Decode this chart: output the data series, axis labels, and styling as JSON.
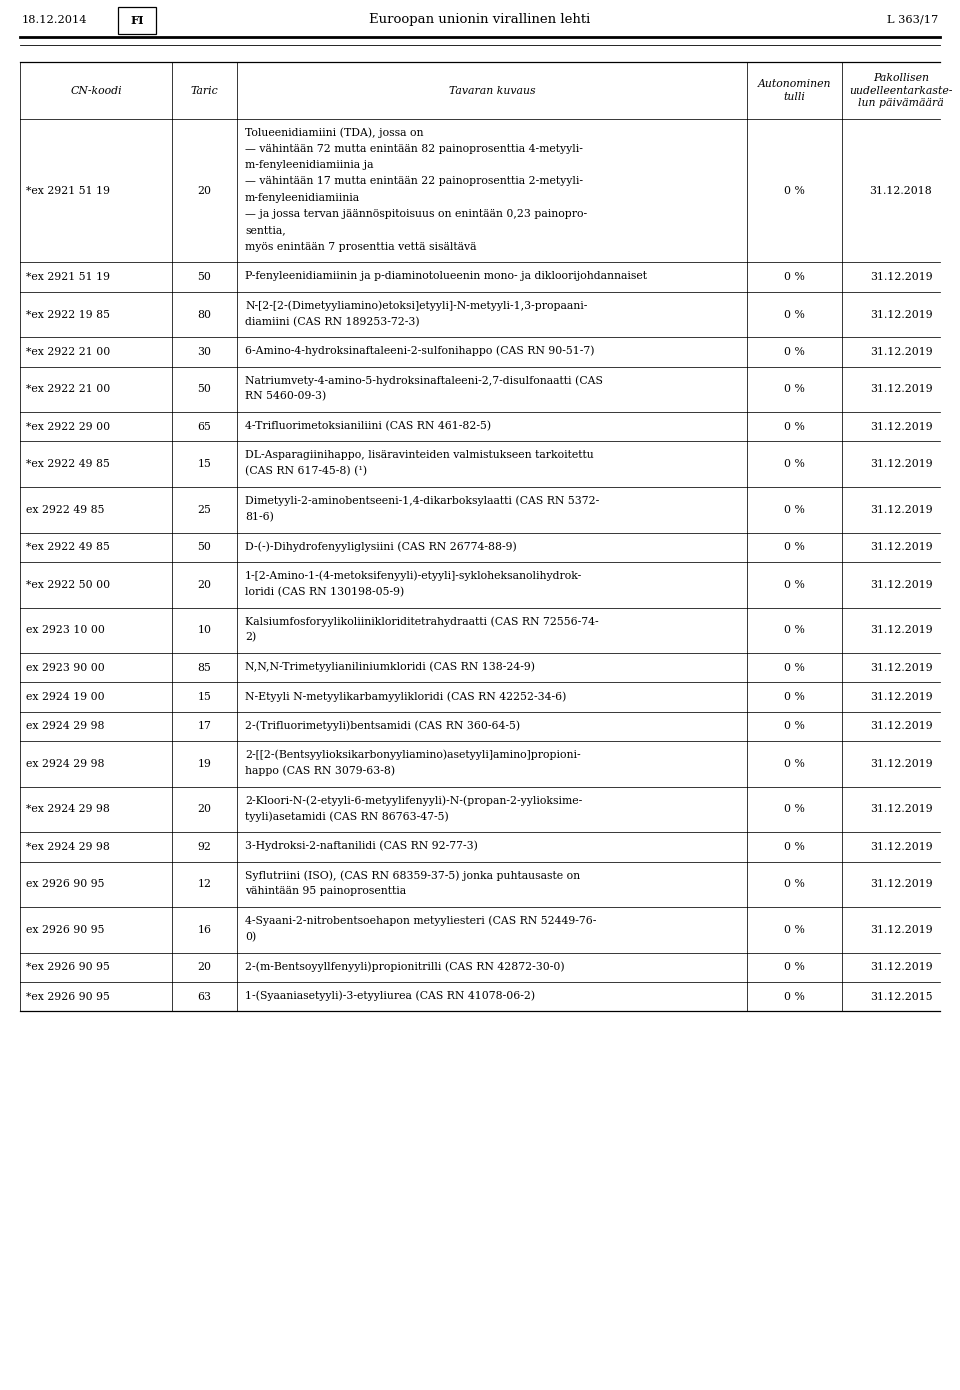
{
  "header_date": "18.12.2014",
  "header_lang": "FI",
  "header_title": "Euroopan unionin virallinen lehti",
  "header_page": "L 363/17",
  "col_headers": [
    "CN-koodi",
    "Taric",
    "Tavaran kuvaus",
    "Autonominen\ntulli",
    "Pakollisen\nuudelleentarkaste-\nlun päivämäärä"
  ],
  "rows": [
    {
      "cn": "*ex 2921 51 19",
      "taric": "20",
      "desc": "Tolueenidiamiini (TDA), jossa on\n— vähintään 72 mutta enintään 82 painoprosenttia 4-metyyli-\nm-fenyleenidiamiinia ja\n— vähintään 17 mutta enintään 22 painoprosenttia 2-metyyli-\nm-fenyleenidiamiinia\n— ja jossa tervan jäännöspitoisuus on enintään 0,23 painopro-\nsenttia,\nmyös enintään 7 prosenttia vettä sisältävä",
      "tulli": "0 %",
      "date": "31.12.2018"
    },
    {
      "cn": "*ex 2921 51 19",
      "taric": "50",
      "desc": "P-fenyleenidiamiinin ja p-diaminotolueenin mono- ja dikloorijohdannaiset",
      "tulli": "0 %",
      "date": "31.12.2019"
    },
    {
      "cn": "*ex 2922 19 85",
      "taric": "80",
      "desc": "N-[2-[2-(Dimetyyliamino)etoksi]etyyli]-N-metyyli-1,3-propaani-\ndiamiini (CAS RN 189253-72-3)",
      "tulli": "0 %",
      "date": "31.12.2019"
    },
    {
      "cn": "*ex 2922 21 00",
      "taric": "30",
      "desc": "6-Amino-4-hydroksinaftaleeni-2-sulfonihappo (CAS RN 90-51-7)",
      "tulli": "0 %",
      "date": "31.12.2019"
    },
    {
      "cn": "*ex 2922 21 00",
      "taric": "50",
      "desc": "Natriumvety-4-amino-5-hydroksinaftaleeni-2,7-disulfonaatti (CAS\nRN 5460-09-3)",
      "tulli": "0 %",
      "date": "31.12.2019"
    },
    {
      "cn": "*ex 2922 29 00",
      "taric": "65",
      "desc": "4-Trifluorimetoksianiliini (CAS RN 461-82-5)",
      "tulli": "0 %",
      "date": "31.12.2019"
    },
    {
      "cn": "*ex 2922 49 85",
      "taric": "15",
      "desc": "DL-Asparagiinihappo, lisäravinteiden valmistukseen tarkoitettu\n(CAS RN 617-45-8) (¹)",
      "tulli": "0 %",
      "date": "31.12.2019"
    },
    {
      "cn": "ex 2922 49 85",
      "taric": "25",
      "desc": "Dimetyyli-2-aminobentseeni-1,4-dikarboksylaatti (CAS RN 5372-\n81-6)",
      "tulli": "0 %",
      "date": "31.12.2019"
    },
    {
      "cn": "*ex 2922 49 85",
      "taric": "50",
      "desc": "D-(-)-Dihydrofenyyliglysiini (CAS RN 26774-88-9)",
      "tulli": "0 %",
      "date": "31.12.2019"
    },
    {
      "cn": "*ex 2922 50 00",
      "taric": "20",
      "desc": "1-[2-Amino-1-(4-metoksifenyyli)-etyyli]-sykloheksanolihydrok-\nloridi (CAS RN 130198-05-9)",
      "tulli": "0 %",
      "date": "31.12.2019"
    },
    {
      "cn": "ex 2923 10 00",
      "taric": "10",
      "desc": "Kalsiumfosforyylikoliinikloriditetrahydraatti (CAS RN 72556-74-\n2)",
      "tulli": "0 %",
      "date": "31.12.2019"
    },
    {
      "cn": "ex 2923 90 00",
      "taric": "85",
      "desc": "N,N,N-Trimetyylianiliniumkloridi (CAS RN 138-24-9)",
      "tulli": "0 %",
      "date": "31.12.2019"
    },
    {
      "cn": "ex 2924 19 00",
      "taric": "15",
      "desc": "N-Etyyli N-metyylikarbamyylikloridi (CAS RN 42252-34-6)",
      "tulli": "0 %",
      "date": "31.12.2019"
    },
    {
      "cn": "ex 2924 29 98",
      "taric": "17",
      "desc": "2-(Trifluorimetyyli)bentsamidi (CAS RN 360-64-5)",
      "tulli": "0 %",
      "date": "31.12.2019"
    },
    {
      "cn": "ex 2924 29 98",
      "taric": "19",
      "desc": "2-[[2-(Bentsyylioksikarbonyyliamino)asetyyli]amino]propioni-\nhappo (CAS RN 3079-63-8)",
      "tulli": "0 %",
      "date": "31.12.2019"
    },
    {
      "cn": "*ex 2924 29 98",
      "taric": "20",
      "desc": "2-Kloori-N-(2-etyyli-6-metyylifenyyli)-N-(propan-2-yylioksime-\ntyyli)asetamidi (CAS RN 86763-47-5)",
      "tulli": "0 %",
      "date": "31.12.2019"
    },
    {
      "cn": "*ex 2924 29 98",
      "taric": "92",
      "desc": "3-Hydroksi-2-naftanilidi (CAS RN 92-77-3)",
      "tulli": "0 %",
      "date": "31.12.2019"
    },
    {
      "cn": "ex 2926 90 95",
      "taric": "12",
      "desc": "Syflutriini (ISO), (CAS RN 68359-37-5) jonka puhtausaste on\nvähintään 95 painoprosenttia",
      "tulli": "0 %",
      "date": "31.12.2019"
    },
    {
      "cn": "ex 2926 90 95",
      "taric": "16",
      "desc": "4-Syaani-2-nitrobentsoehapon metyyliesteri (CAS RN 52449-76-\n0)",
      "tulli": "0 %",
      "date": "31.12.2019"
    },
    {
      "cn": "*ex 2926 90 95",
      "taric": "20",
      "desc": "2-(m-Bentsoyyllfenyyli)propionitrilli (CAS RN 42872-30-0)",
      "tulli": "0 %",
      "date": "31.12.2019"
    },
    {
      "cn": "*ex 2926 90 95",
      "taric": "63",
      "desc": "1-(Syaaniasetyyli)-3-etyyliurea (CAS RN 41078-06-2)",
      "tulli": "0 %",
      "date": "31.12.2015"
    }
  ],
  "bg_color": "#ffffff",
  "text_color": "#000000",
  "line_color": "#000000",
  "font_size": 7.8,
  "col_header_font_size": 7.8
}
